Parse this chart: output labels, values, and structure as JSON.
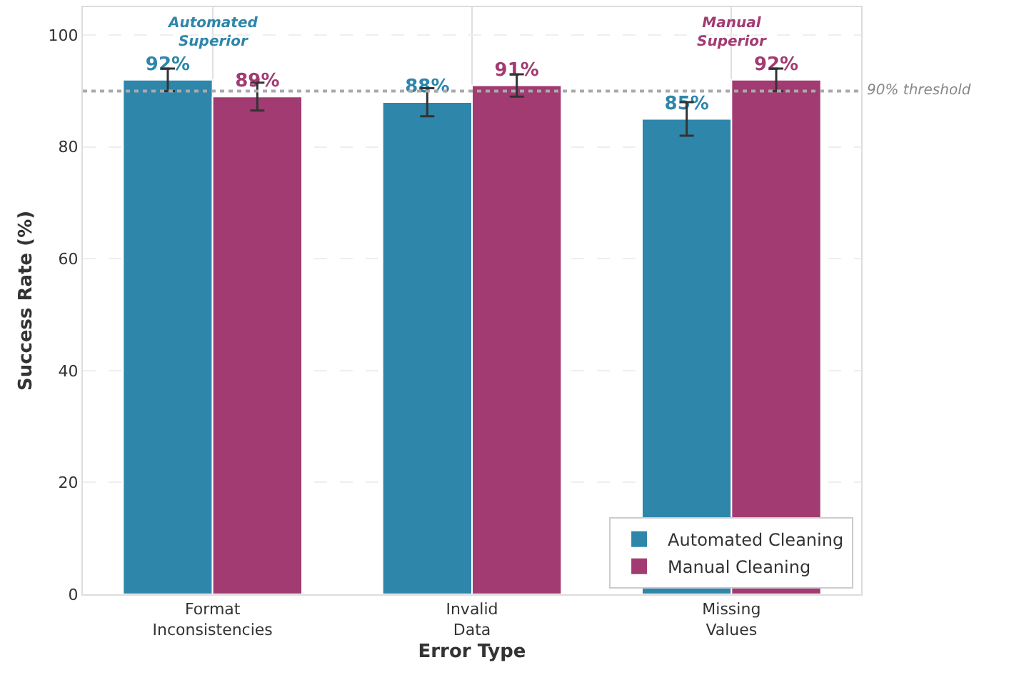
{
  "chart_data": {
    "type": "bar",
    "xlabel": "Error Type",
    "ylabel": "Success Rate (%)",
    "categories": [
      "Format\nInconsistencies",
      "Invalid\nData",
      "Missing\nValues"
    ],
    "series": [
      {
        "name": "Automated Cleaning",
        "color": "#2e86ab",
        "values": [
          92,
          88,
          85
        ],
        "errors": [
          2,
          2.5,
          3
        ],
        "value_labels": [
          "92%",
          "88%",
          "85%"
        ]
      },
      {
        "name": "Manual Cleaning",
        "color": "#a23b72",
        "values": [
          89,
          91,
          92
        ],
        "errors": [
          2.5,
          2,
          2
        ],
        "value_labels": [
          "89%",
          "91%",
          "92%"
        ]
      }
    ],
    "ylim": [
      0,
      105
    ],
    "yticks": [
      0,
      20,
      40,
      60,
      80,
      100
    ],
    "grid": true,
    "legend": "bottom right",
    "ref_lines": [
      {
        "axis": "y",
        "value": 90,
        "label": "90% threshold",
        "color": "#aaaaaa",
        "line_style": "dotted"
      }
    ],
    "annotations": [
      "Automated\nSuperior",
      "Manual\nSuperior"
    ]
  }
}
